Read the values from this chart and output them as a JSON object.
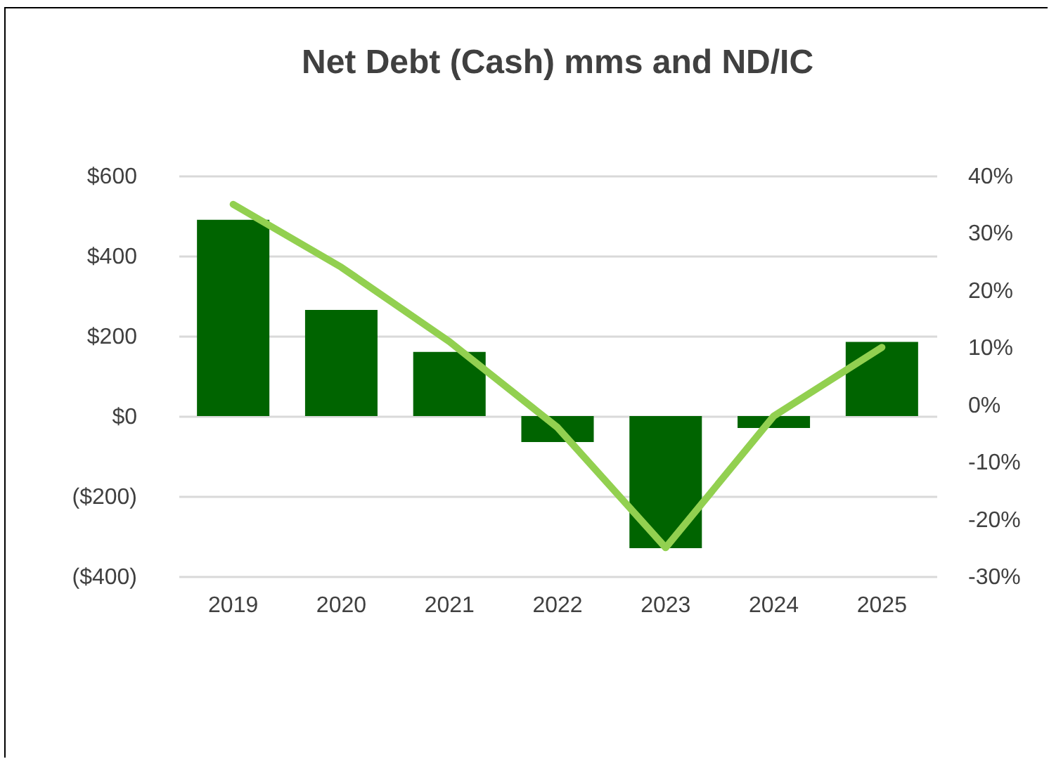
{
  "chart_data": {
    "type": "bar",
    "title": "Net Debt (Cash) mms and ND/IC",
    "categories": [
      "2019",
      "2020",
      "2021",
      "2022",
      "2023",
      "2024",
      "2025"
    ],
    "series": [
      {
        "color": "#006400",
        "values": [
          490,
          265,
          160,
          -65,
          -330,
          -30,
          185
        ]
      },
      {
        "type": "line",
        "axis": "y2",
        "color": "#92d050",
        "values": [
          35,
          24,
          11,
          -4,
          -25,
          -2,
          10
        ]
      }
    ],
    "ylim": [
      -400,
      600
    ],
    "yticks": [
      {
        "value": -400,
        "label": "($400)"
      },
      {
        "value": -200,
        "label": "($200)"
      },
      {
        "value": 0,
        "label": "$0"
      },
      {
        "value": 200,
        "label": "$200"
      },
      {
        "value": 400,
        "label": "$400"
      },
      {
        "value": 600,
        "label": "$600"
      }
    ],
    "y2lim": [
      -30,
      40
    ],
    "y2ticks": [
      {
        "value": -30,
        "label": "-30%"
      },
      {
        "value": -20,
        "label": "-20%"
      },
      {
        "value": -10,
        "label": "-10%"
      },
      {
        "value": 0,
        "label": "0%"
      },
      {
        "value": 10,
        "label": "10%"
      },
      {
        "value": 20,
        "label": "20%"
      },
      {
        "value": 30,
        "label": "30%"
      },
      {
        "value": 40,
        "label": "40%"
      }
    ],
    "grid": "y",
    "line_style": "solid",
    "marker": "none"
  }
}
